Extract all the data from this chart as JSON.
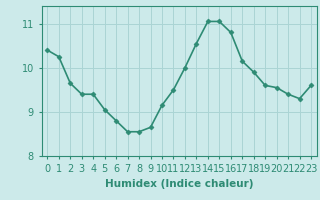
{
  "x": [
    0,
    1,
    2,
    3,
    4,
    5,
    6,
    7,
    8,
    9,
    10,
    11,
    12,
    13,
    14,
    15,
    16,
    17,
    18,
    19,
    20,
    21,
    22,
    23
  ],
  "y": [
    10.4,
    10.25,
    9.65,
    9.4,
    9.4,
    9.05,
    8.8,
    8.55,
    8.55,
    8.65,
    9.15,
    9.5,
    10.0,
    10.55,
    11.05,
    11.05,
    10.8,
    10.15,
    9.9,
    9.6,
    9.55,
    9.4,
    9.3,
    9.6
  ],
  "line_color": "#2e8b74",
  "marker": "D",
  "marker_size": 2.5,
  "bg_color": "#cceaea",
  "grid_color": "#aad4d4",
  "xlabel": "Humidex (Indice chaleur)",
  "ylim": [
    8,
    11.4
  ],
  "xlim": [
    -0.5,
    23.5
  ],
  "yticks": [
    8,
    9,
    10,
    11
  ],
  "xticks": [
    0,
    1,
    2,
    3,
    4,
    5,
    6,
    7,
    8,
    9,
    10,
    11,
    12,
    13,
    14,
    15,
    16,
    17,
    18,
    19,
    20,
    21,
    22,
    23
  ],
  "xlabel_fontsize": 7.5,
  "tick_fontsize": 7,
  "line_width": 1.2
}
